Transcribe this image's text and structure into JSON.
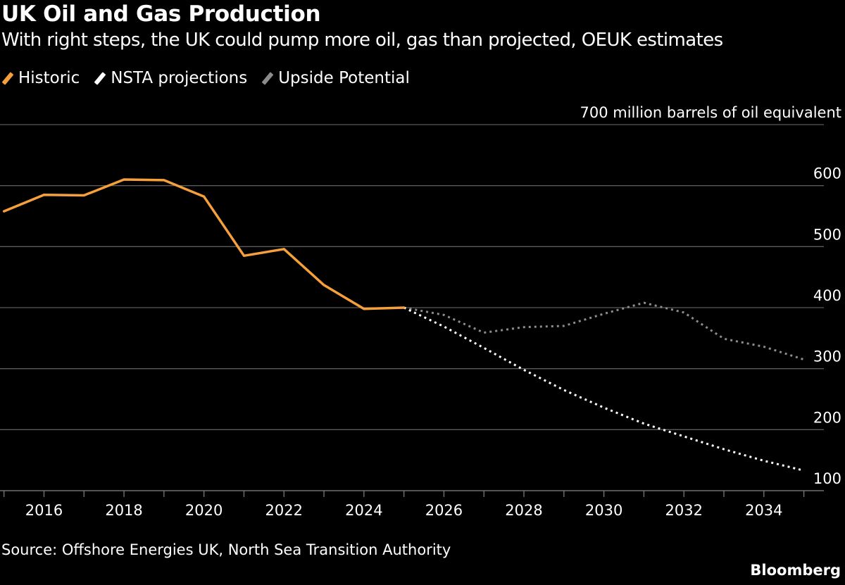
{
  "header": {
    "title": "UK Oil and Gas Production",
    "subtitle": "With right steps, the UK could pump more oil, gas than projected, OEUK estimates"
  },
  "legend": [
    {
      "label": "Historic",
      "color": "#f5a03a"
    },
    {
      "label": "NSTA projections",
      "color": "#ffffff"
    },
    {
      "label": "Upside Potential",
      "color": "#8c8c8c"
    }
  ],
  "footer": {
    "source": "Source: Offshore Energies UK, North Sea Transition Authority",
    "brand": "Bloomberg"
  },
  "chart_data": {
    "type": "line",
    "title": "UK Oil and Gas Production",
    "ylabel": "700 million barrels of oil equivalent",
    "xlabel": "",
    "xlim": [
      2014.9,
      2035.5
    ],
    "ylim": [
      100,
      700
    ],
    "y_ticks": [
      {
        "value": 700,
        "label": "700 million barrels of oil equivalent"
      },
      {
        "value": 600,
        "label": "600"
      },
      {
        "value": 500,
        "label": "500"
      },
      {
        "value": 400,
        "label": "400"
      },
      {
        "value": 300,
        "label": "300"
      },
      {
        "value": 200,
        "label": "200"
      },
      {
        "value": 100,
        "label": "100"
      }
    ],
    "x_ticks": [
      {
        "value": 2016,
        "label": "2016"
      },
      {
        "value": 2018,
        "label": "2018"
      },
      {
        "value": 2020,
        "label": "2020"
      },
      {
        "value": 2022,
        "label": "2022"
      },
      {
        "value": 2024,
        "label": "2024"
      },
      {
        "value": 2026,
        "label": "2026"
      },
      {
        "value": 2028,
        "label": "2028"
      },
      {
        "value": 2030,
        "label": "2030"
      },
      {
        "value": 2032,
        "label": "2032"
      },
      {
        "value": 2034,
        "label": "2034"
      }
    ],
    "series": [
      {
        "name": "Historic",
        "color": "#f5a03a",
        "style": "solid",
        "x": [
          2015,
          2016,
          2017,
          2018,
          2019,
          2020,
          2021,
          2022,
          2023,
          2024,
          2025
        ],
        "values": [
          558,
          585,
          584,
          610,
          609,
          582,
          485,
          496,
          437,
          398,
          400
        ]
      },
      {
        "name": "NSTA projections",
        "color": "#ffffff",
        "style": "dotted",
        "x": [
          2025,
          2026,
          2027,
          2028,
          2029,
          2030,
          2031,
          2032,
          2033,
          2034,
          2035
        ],
        "values": [
          400,
          369,
          334,
          298,
          265,
          236,
          210,
          189,
          168,
          149,
          133
        ]
      },
      {
        "name": "Upside Potential",
        "color": "#8c8c8c",
        "style": "dotted",
        "x": [
          2025,
          2026,
          2027,
          2028,
          2029,
          2030,
          2031,
          2032,
          2033,
          2034,
          2035
        ],
        "values": [
          400,
          388,
          359,
          368,
          370,
          390,
          408,
          392,
          349,
          336,
          315
        ]
      }
    ]
  }
}
